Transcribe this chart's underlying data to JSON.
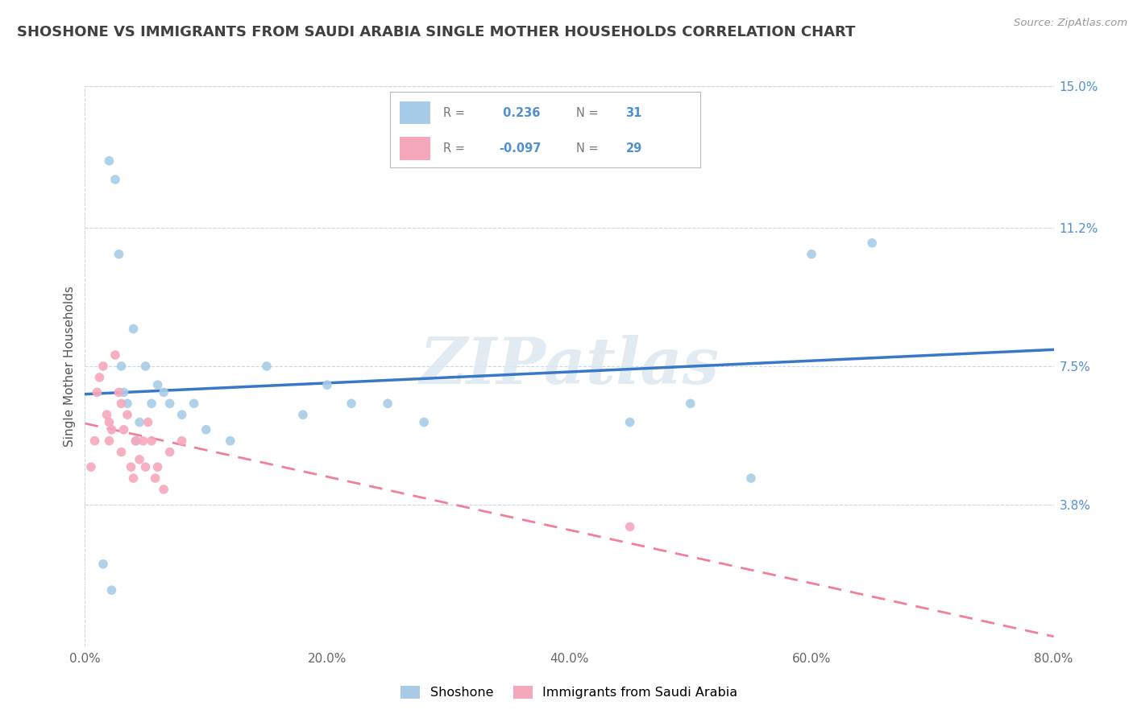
{
  "title": "SHOSHONE VS IMMIGRANTS FROM SAUDI ARABIA SINGLE MOTHER HOUSEHOLDS CORRELATION CHART",
  "source_text": "Source: ZipAtlas.com",
  "ylabel": "Single Mother Households",
  "watermark": "ZIPatlas",
  "xlim": [
    0.0,
    80.0
  ],
  "ylim": [
    0.0,
    15.0
  ],
  "x_ticks": [
    0.0,
    20.0,
    40.0,
    60.0,
    80.0
  ],
  "y_ticks_right": [
    3.8,
    7.5,
    11.2,
    15.0
  ],
  "shoshone_label": "Shoshone",
  "saudi_label": "Immigrants from Saudi Arabia",
  "shoshone_color": "#a8cce8",
  "saudi_color": "#f5a8bc",
  "shoshone_line_color": "#3878c8",
  "saudi_line_color": "#f08098",
  "shoshone_R": 0.236,
  "shoshone_N": 31,
  "saudi_R": -0.097,
  "saudi_N": 29,
  "background_color": "#ffffff",
  "grid_color": "#c8d8e8",
  "title_color": "#404040",
  "right_axis_color": "#5090d0",
  "shoshone_x": [
    1.5,
    2.0,
    2.5,
    2.8,
    3.0,
    3.5,
    4.0,
    4.5,
    5.0,
    5.5,
    6.0,
    6.5,
    7.0,
    8.0,
    9.0,
    10.0,
    12.0,
    15.0,
    18.0,
    20.0,
    22.0,
    25.0,
    28.0,
    45.0,
    50.0,
    55.0,
    60.0,
    65.0,
    2.2,
    3.2,
    4.2
  ],
  "shoshone_y": [
    2.2,
    13.0,
    12.5,
    10.5,
    7.5,
    6.5,
    8.5,
    6.0,
    7.5,
    6.5,
    7.0,
    6.8,
    6.5,
    6.2,
    6.5,
    5.8,
    5.5,
    7.5,
    6.2,
    7.0,
    6.5,
    6.5,
    6.0,
    6.0,
    6.5,
    4.5,
    10.5,
    10.8,
    1.5,
    6.8,
    5.5
  ],
  "saudi_x": [
    0.5,
    0.8,
    1.0,
    1.2,
    1.5,
    1.8,
    2.0,
    2.0,
    2.2,
    2.5,
    2.8,
    3.0,
    3.0,
    3.2,
    3.5,
    3.8,
    4.0,
    4.2,
    4.5,
    4.8,
    5.0,
    5.2,
    5.5,
    5.8,
    6.0,
    6.5,
    7.0,
    8.0,
    45.0
  ],
  "saudi_y": [
    4.8,
    5.5,
    6.8,
    7.2,
    7.5,
    6.2,
    6.0,
    5.5,
    5.8,
    7.8,
    6.8,
    6.5,
    5.2,
    5.8,
    6.2,
    4.8,
    4.5,
    5.5,
    5.0,
    5.5,
    4.8,
    6.0,
    5.5,
    4.5,
    4.8,
    4.2,
    5.2,
    5.5,
    3.2
  ]
}
